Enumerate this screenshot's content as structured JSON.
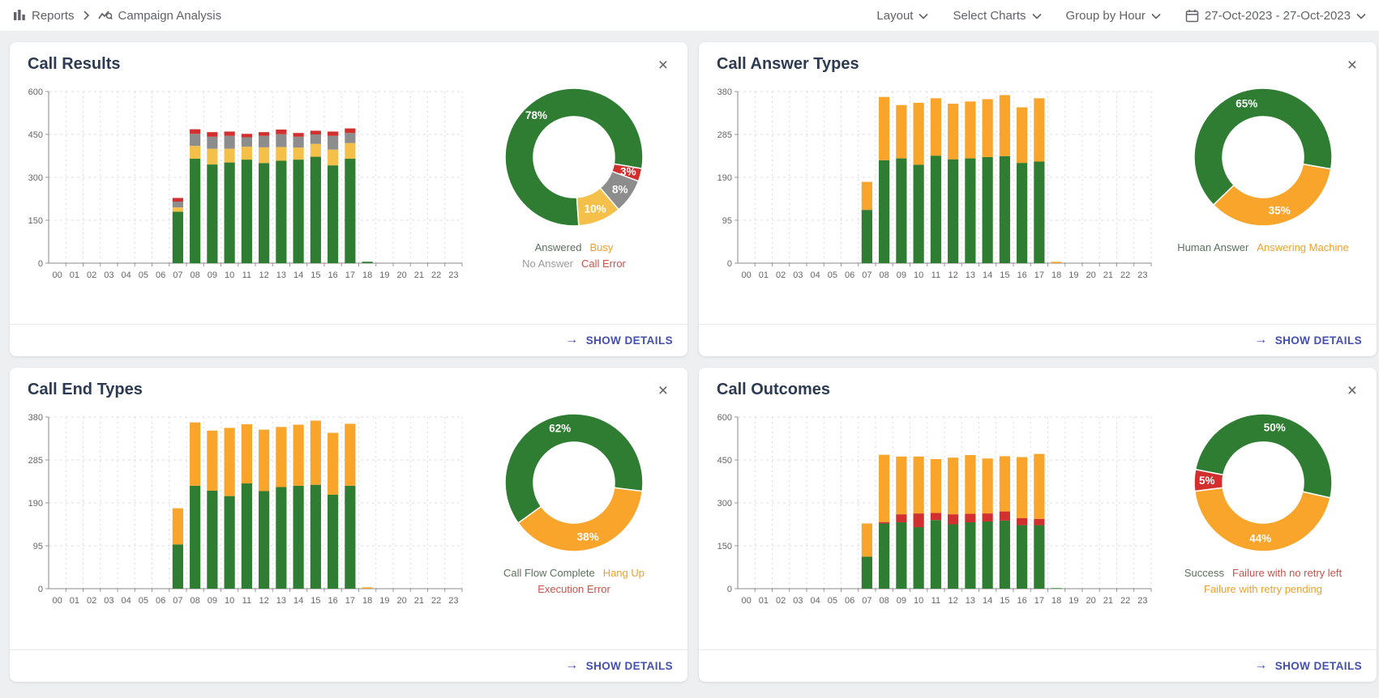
{
  "topbar": {
    "breadcrumb": {
      "root": "Reports",
      "current": "Campaign Analysis"
    },
    "controls": [
      {
        "label": "Layout"
      },
      {
        "label": "Select Charts"
      },
      {
        "label": "Group by Hour"
      }
    ],
    "date_range": "27-Oct-2023 - 27-Oct-2023"
  },
  "common": {
    "show_details": "SHOW DETAILS"
  },
  "colors": {
    "green": "#2e7d32",
    "orange": "#f9a52b",
    "yellow": "#f5c04a",
    "gray": "#8d8d8d",
    "red": "#d2302f",
    "link_indigo": "#4350b0",
    "title_navy": "#2c3a52"
  },
  "chart_data": [
    {
      "title": "Call Results",
      "type": "bar",
      "stacked": true,
      "categories": [
        "00",
        "01",
        "02",
        "03",
        "04",
        "05",
        "06",
        "07",
        "08",
        "09",
        "10",
        "11",
        "12",
        "13",
        "14",
        "15",
        "16",
        "17",
        "18",
        "19",
        "20",
        "21",
        "22",
        "23"
      ],
      "ylim": [
        0,
        600
      ],
      "yticks": [
        0,
        150,
        300,
        450,
        600
      ],
      "series": [
        {
          "name": "Answered",
          "color": "#2e7d32",
          "values": [
            0,
            0,
            0,
            0,
            0,
            0,
            0,
            180,
            365,
            345,
            352,
            362,
            350,
            358,
            362,
            372,
            342,
            365,
            5,
            0,
            0,
            0,
            0,
            0
          ]
        },
        {
          "name": "Busy",
          "color": "#f5c04a",
          "values": [
            0,
            0,
            0,
            0,
            0,
            0,
            0,
            15,
            45,
            55,
            48,
            45,
            55,
            48,
            42,
            45,
            55,
            55,
            0,
            0,
            0,
            0,
            0,
            0
          ]
        },
        {
          "name": "No Answer",
          "color": "#8d8d8d",
          "values": [
            0,
            0,
            0,
            0,
            0,
            0,
            0,
            20,
            42,
            42,
            45,
            33,
            40,
            45,
            38,
            33,
            48,
            35,
            0,
            0,
            0,
            0,
            0,
            0
          ]
        },
        {
          "name": "Call Error",
          "color": "#d2302f",
          "values": [
            0,
            0,
            0,
            0,
            0,
            0,
            0,
            13,
            16,
            16,
            15,
            12,
            13,
            16,
            13,
            13,
            15,
            16,
            0,
            0,
            0,
            0,
            0,
            0
          ]
        }
      ],
      "donut": {
        "type": "pie",
        "rotation": 176,
        "slices": [
          {
            "label": "Answered",
            "pct": 78,
            "color": "#2e7d32"
          },
          {
            "label": "Call Error",
            "pct": 3,
            "color": "#d2302f"
          },
          {
            "label": "No Answer",
            "pct": 8,
            "color": "#8d8d8d"
          },
          {
            "label": "Busy",
            "pct": 10,
            "color": "#f5c04a"
          }
        ],
        "legend_rows": [
          [
            {
              "label": "Answered",
              "color": "#5c715f"
            },
            {
              "label": "Busy",
              "color": "#efa02c"
            }
          ],
          [
            {
              "label": "No Answer",
              "color": "#9a9a9a"
            },
            {
              "label": "Call Error",
              "color": "#c9534b"
            }
          ]
        ]
      }
    },
    {
      "title": "Call Answer Types",
      "type": "bar",
      "stacked": true,
      "categories": [
        "00",
        "01",
        "02",
        "03",
        "04",
        "05",
        "06",
        "07",
        "08",
        "09",
        "10",
        "11",
        "12",
        "13",
        "14",
        "15",
        "16",
        "17",
        "18",
        "19",
        "20",
        "21",
        "22",
        "23"
      ],
      "ylim": [
        0,
        380
      ],
      "yticks": [
        0,
        95,
        190,
        285,
        380
      ],
      "series": [
        {
          "name": "Human Answer",
          "color": "#2e7d32",
          "values": [
            0,
            0,
            0,
            0,
            0,
            0,
            0,
            118,
            228,
            232,
            218,
            238,
            230,
            232,
            235,
            237,
            222,
            225,
            0,
            0,
            0,
            0,
            0,
            0
          ]
        },
        {
          "name": "Answering Machine",
          "color": "#f9a52b",
          "values": [
            0,
            0,
            0,
            0,
            0,
            0,
            0,
            62,
            140,
            118,
            137,
            127,
            123,
            126,
            128,
            135,
            123,
            140,
            3,
            0,
            0,
            0,
            0,
            0
          ]
        }
      ],
      "donut": {
        "type": "pie",
        "rotation": 226,
        "slices": [
          {
            "label": "Human Answer",
            "pct": 65,
            "color": "#2e7d32"
          },
          {
            "label": "Answering Machine",
            "pct": 35,
            "color": "#f9a52b"
          }
        ],
        "legend_rows": [
          [
            {
              "label": "Human Answer",
              "color": "#5c715f"
            },
            {
              "label": "Answering Machine",
              "color": "#efa02c"
            }
          ]
        ]
      }
    },
    {
      "title": "Call End Types",
      "type": "bar",
      "stacked": true,
      "categories": [
        "00",
        "01",
        "02",
        "03",
        "04",
        "05",
        "06",
        "07",
        "08",
        "09",
        "10",
        "11",
        "12",
        "13",
        "14",
        "15",
        "16",
        "17",
        "18",
        "19",
        "20",
        "21",
        "22",
        "23"
      ],
      "ylim": [
        0,
        380
      ],
      "yticks": [
        0,
        95,
        190,
        285,
        380
      ],
      "series": [
        {
          "name": "Call Flow Complete",
          "color": "#2e7d32",
          "values": [
            0,
            0,
            0,
            0,
            0,
            0,
            0,
            98,
            228,
            217,
            205,
            233,
            216,
            225,
            228,
            230,
            208,
            228,
            0,
            0,
            0,
            0,
            0,
            0
          ]
        },
        {
          "name": "Hang Up",
          "color": "#f9a52b",
          "values": [
            0,
            0,
            0,
            0,
            0,
            0,
            0,
            80,
            140,
            133,
            151,
            131,
            136,
            133,
            135,
            142,
            137,
            137,
            3,
            0,
            0,
            0,
            0,
            0
          ]
        },
        {
          "name": "Execution Error",
          "color": "#d2302f",
          "values": [
            0,
            0,
            0,
            0,
            0,
            0,
            0,
            0,
            0,
            0,
            0,
            0,
            0,
            0,
            0,
            0,
            0,
            0,
            0,
            0,
            0,
            0,
            0,
            0
          ]
        }
      ],
      "donut": {
        "type": "pie",
        "rotation": 234,
        "slices": [
          {
            "label": "Call Flow Complete",
            "pct": 62,
            "color": "#2e7d32"
          },
          {
            "label": "Hang Up",
            "pct": 38,
            "color": "#f9a52b"
          },
          {
            "label": "Execution Error",
            "pct": 0,
            "color": "#d2302f"
          }
        ],
        "legend_rows": [
          [
            {
              "label": "Call Flow Complete",
              "color": "#5c715f"
            },
            {
              "label": "Hang Up",
              "color": "#efa02c"
            }
          ],
          [
            {
              "label": "Execution Error",
              "color": "#c9534b"
            }
          ]
        ]
      }
    },
    {
      "title": "Call Outcomes",
      "type": "bar",
      "stacked": true,
      "categories": [
        "00",
        "01",
        "02",
        "03",
        "04",
        "05",
        "06",
        "07",
        "08",
        "09",
        "10",
        "11",
        "12",
        "13",
        "14",
        "15",
        "16",
        "17",
        "18",
        "19",
        "20",
        "21",
        "22",
        "23"
      ],
      "ylim": [
        0,
        600
      ],
      "yticks": [
        0,
        150,
        300,
        450,
        600
      ],
      "series": [
        {
          "name": "Success",
          "color": "#2e7d32",
          "values": [
            0,
            0,
            0,
            0,
            0,
            0,
            0,
            112,
            228,
            232,
            215,
            240,
            225,
            232,
            235,
            238,
            222,
            222,
            2,
            0,
            0,
            0,
            0,
            0
          ]
        },
        {
          "name": "Failure with no retry left",
          "color": "#d2302f",
          "values": [
            0,
            0,
            0,
            0,
            0,
            0,
            0,
            0,
            5,
            28,
            48,
            25,
            35,
            30,
            28,
            32,
            25,
            22,
            0,
            0,
            0,
            0,
            0,
            0
          ]
        },
        {
          "name": "Failure with retry pending",
          "color": "#f9a52b",
          "values": [
            0,
            0,
            0,
            0,
            0,
            0,
            0,
            116,
            235,
            202,
            199,
            188,
            198,
            205,
            192,
            193,
            213,
            227,
            0,
            0,
            0,
            0,
            0,
            0
          ]
        }
      ],
      "donut": {
        "type": "pie",
        "rotation": 281,
        "slices": [
          {
            "label": "Success",
            "pct": 50,
            "color": "#2e7d32"
          },
          {
            "label": "Failure with retry pending",
            "pct": 44,
            "color": "#f9a52b"
          },
          {
            "label": "Failure with no retry left",
            "pct": 5,
            "color": "#d2302f"
          }
        ],
        "legend_rows": [
          [
            {
              "label": "Success",
              "color": "#5c715f"
            },
            {
              "label": "Failure with no retry left",
              "color": "#c9534b"
            }
          ],
          [
            {
              "label": "Failure with retry pending",
              "color": "#efa02c"
            }
          ]
        ]
      }
    }
  ]
}
